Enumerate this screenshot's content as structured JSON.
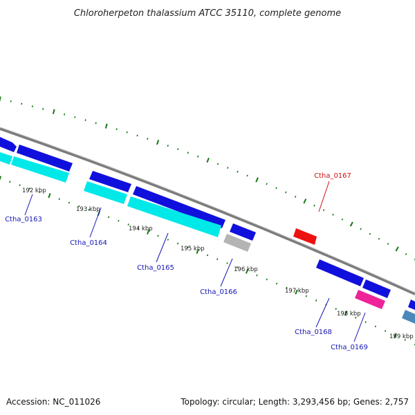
{
  "title": "Chloroherpeton thalassium ATCC 35110, complete genome",
  "footer": {
    "accession": "Accession: NC_011026",
    "summary": "Topology: circular; Length: 3,293,456 bp; Genes: 2,757"
  },
  "colors": {
    "backbone": "#808080",
    "tick": "#117711",
    "forward_gene": "#1010dd",
    "reverse_gene": "#00e8e8",
    "gray_feature": "#b0b0b0",
    "red_feature": "#ee1111",
    "magenta_feature": "#ee2299",
    "steelblue_feature": "#4a88b8",
    "label_blue": "#1414b4",
    "label_red": "#cc1111"
  },
  "scale_labels": [
    "192 kbp",
    "193 kbp",
    "194 kbp",
    "195 kbp",
    "196 kbp",
    "197 kbp",
    "198 kbp",
    "199 kbp"
  ],
  "gene_labels": [
    {
      "name": "Ctha_0163",
      "color": "blue"
    },
    {
      "name": "Ctha_0164",
      "color": "blue"
    },
    {
      "name": "Ctha_0165",
      "color": "blue"
    },
    {
      "name": "Ctha_0166",
      "color": "blue"
    },
    {
      "name": "Ctha_0167",
      "color": "red"
    },
    {
      "name": "Ctha_0168",
      "color": "blue"
    },
    {
      "name": "Ctha_0169",
      "color": "blue"
    }
  ]
}
